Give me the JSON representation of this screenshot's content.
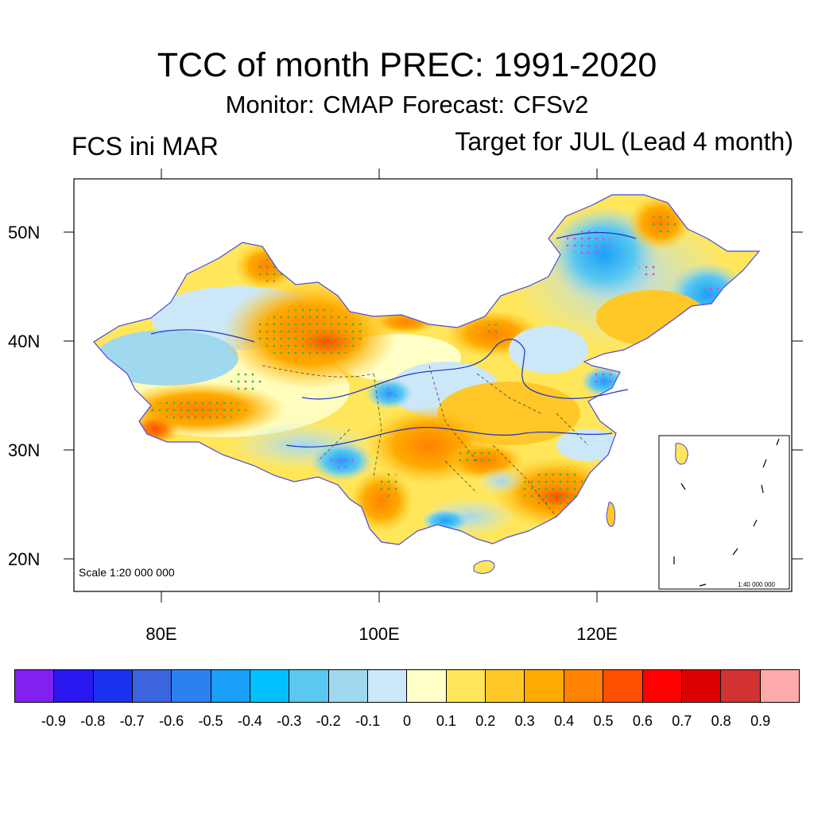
{
  "header": {
    "title": "TCC of month PREC: 1991-2020",
    "subtitle": "Monitor: CMAP   Forecast: CFSv2",
    "left_label": "FCS ini MAR",
    "right_label": "Target for JUL (Lead 4 month)"
  },
  "map": {
    "lat_ticks": [
      "50N",
      "40N",
      "30N",
      "20N"
    ],
    "lon_ticks": [
      "80E",
      "100E",
      "120E"
    ],
    "scale_main": "Scale 1:20 000 000",
    "scale_inset": "1:40 000 000"
  },
  "colorbar": {
    "colors": [
      "#8220f0",
      "#2a17f0",
      "#1a31f0",
      "#3c64dc",
      "#2c80f0",
      "#1aa0f8",
      "#00c0ff",
      "#5ac8f0",
      "#a0d8f0",
      "#cce8f8",
      "#ffffc8",
      "#ffe65a",
      "#ffc828",
      "#ffaa00",
      "#ff8200",
      "#ff5000",
      "#ff0000",
      "#dc0000",
      "#d23232",
      "#ffaaaa"
    ],
    "labels": [
      "-0.9",
      "-0.8",
      "-0.7",
      "-0.6",
      "-0.5",
      "-0.4",
      "-0.3",
      "-0.2",
      "-0.1",
      "0",
      "0.1",
      "0.2",
      "0.3",
      "0.4",
      "0.5",
      "0.6",
      "0.7",
      "0.8",
      "0.9"
    ]
  }
}
